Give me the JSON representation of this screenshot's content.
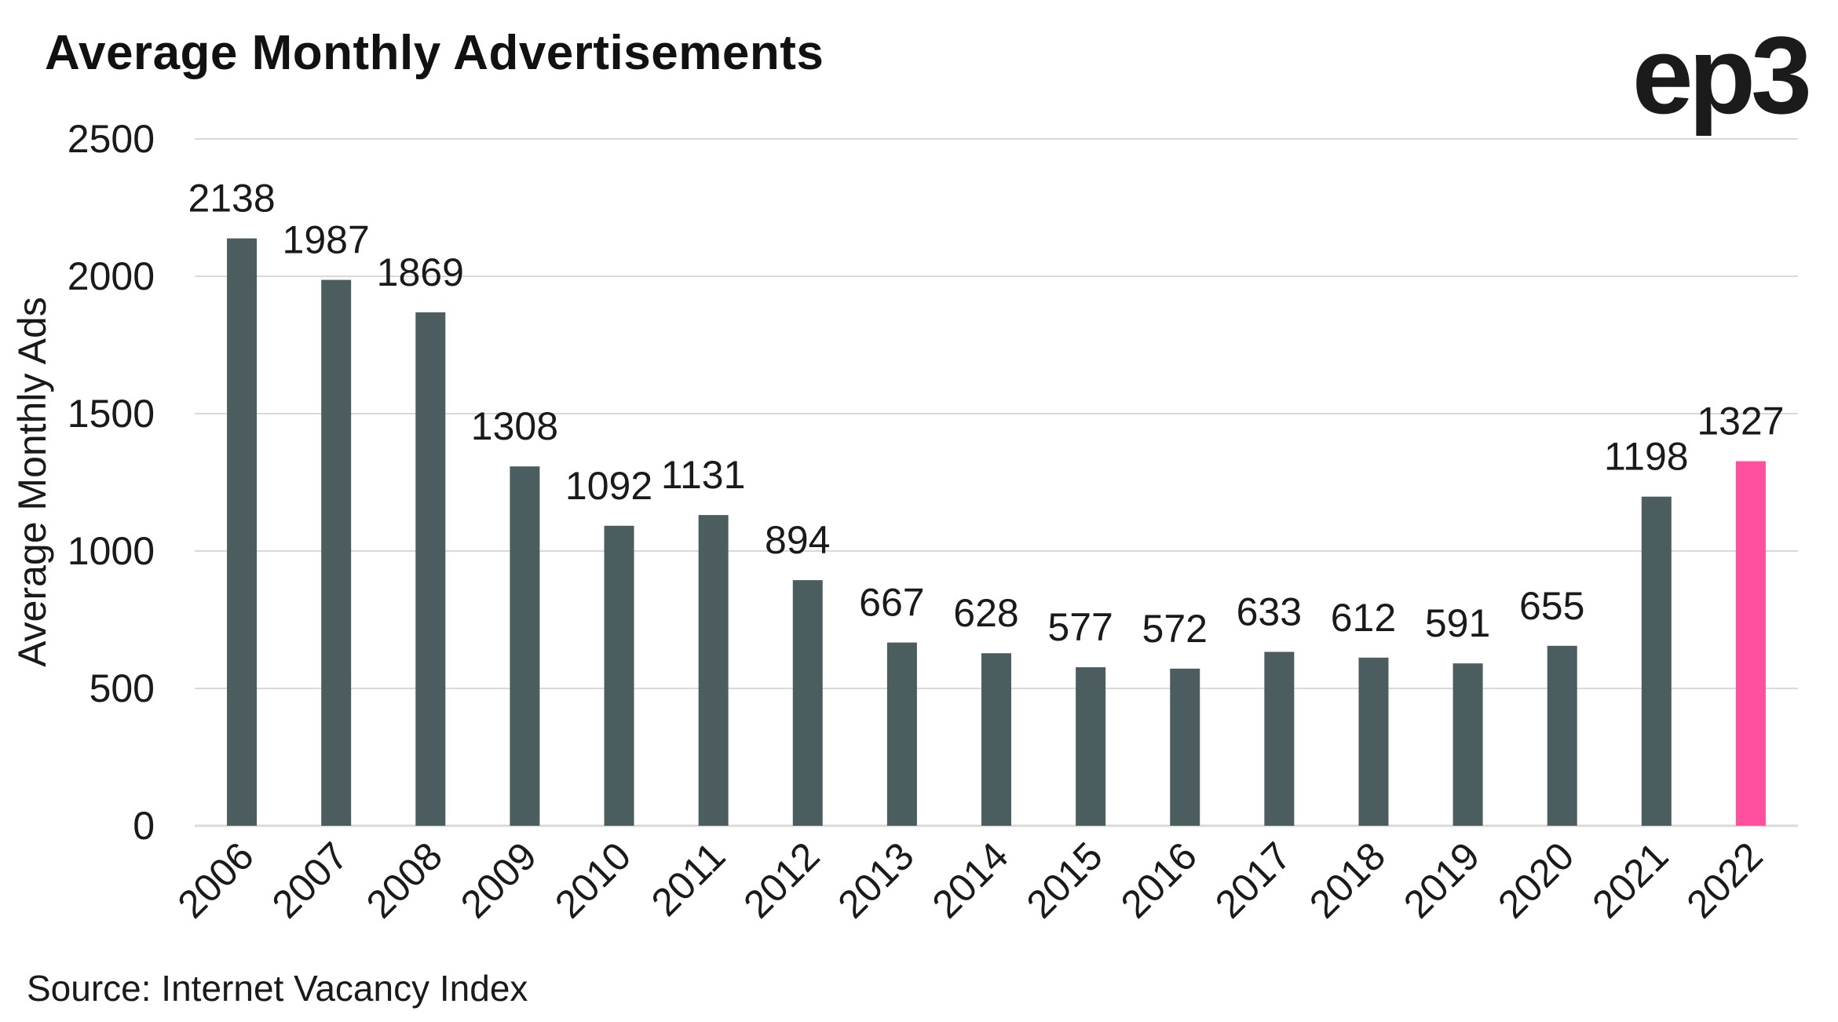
{
  "chart_data": {
    "type": "bar",
    "title": "Average Monthly Advertisements",
    "xlabel": "",
    "ylabel": "Average Monthly Ads",
    "ylim": [
      0,
      2500
    ],
    "yticks": [
      0,
      500,
      1000,
      1500,
      2000,
      2500
    ],
    "grid": true,
    "legend": "none",
    "categories": [
      "2006",
      "2007",
      "2008",
      "2009",
      "2010",
      "2011",
      "2012",
      "2013",
      "2014",
      "2015",
      "2016",
      "2017",
      "2018",
      "2019",
      "2020",
      "2021",
      "2022"
    ],
    "series": [
      {
        "values": [
          2138,
          1987,
          1869,
          1308,
          1092,
          1131,
          894,
          667,
          628,
          577,
          572,
          633,
          612,
          591,
          655,
          1198,
          1327
        ]
      }
    ],
    "data_labels": true,
    "colors": {
      "bar": "#4c5d5f",
      "highlight": "#ff4f9e",
      "grid": "#d9d9d9"
    },
    "highlight_category": "2022"
  },
  "source": "Source: Internet Vacancy Index",
  "brand": {
    "logo_text": "ep3"
  }
}
